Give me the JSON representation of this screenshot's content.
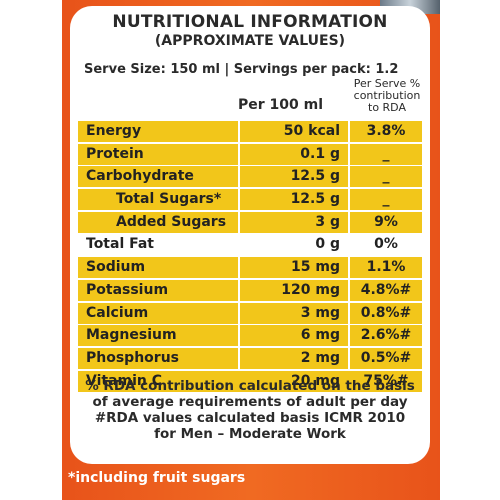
{
  "title": "NUTRITIONAL INFORMATION",
  "subtitle": "(APPROXIMATE VALUES)",
  "serve_info": "Serve Size: 150 ml | Servings per pack: 1.2",
  "columns": {
    "per100": "Per 100 ml",
    "rda": "Per Serve % contribution to RDA"
  },
  "rows": [
    {
      "name": "Energy",
      "value": "50 kcal",
      "rda": "3.8%"
    },
    {
      "name": "Protein",
      "value": "0.1 g",
      "rda": "_"
    },
    {
      "name": "Carbohydrate",
      "value": "12.5 g",
      "rda": "_"
    },
    {
      "name": "Total Sugars*",
      "value": "12.5 g",
      "rda": "_"
    },
    {
      "name": "Added Sugars",
      "value": "3 g",
      "rda": "9%"
    },
    {
      "name": "Total Fat",
      "value": "0 g",
      "rda": "0%"
    },
    {
      "name": "Sodium",
      "value": "15 mg",
      "rda": "1.1%"
    },
    {
      "name": "Potassium",
      "value": "120 mg",
      "rda": "4.8%#"
    },
    {
      "name": "Calcium",
      "value": "3 mg",
      "rda": "0.8%#"
    },
    {
      "name": "Magnesium",
      "value": "6 mg",
      "rda": "2.6%#"
    },
    {
      "name": "Phosphorus",
      "value": "2 mg",
      "rda": "0.5%#"
    },
    {
      "name": "Vitamin C",
      "value": "20 mg",
      "rda": "75%#"
    }
  ],
  "notes": [
    "% RDA contribution calculated on the basis",
    "of average requirements of adult per day",
    "#RDA values calculated basis ICMR 2010",
    "for Men – Moderate  Work"
  ],
  "footer": "*including fruit sugars",
  "colors": {
    "pack_orange": "#f06a22",
    "row_yellow": "#f2c61a"
  }
}
